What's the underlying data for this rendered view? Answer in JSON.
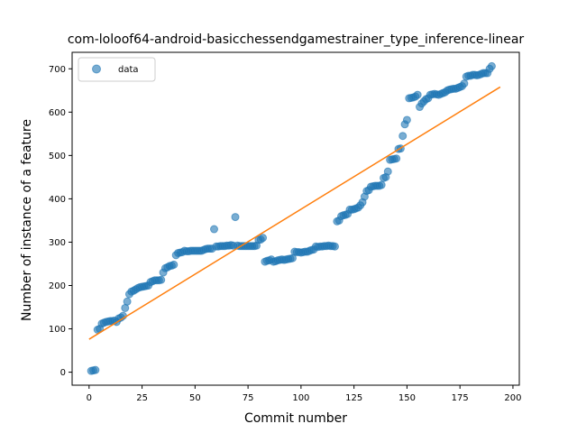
{
  "chart_data": {
    "type": "scatter",
    "title": "com-loloof64-android-basicchessendgamestrainer_type_inference-linear",
    "xlabel": "Commit number",
    "ylabel": "Number of instance of a feature",
    "xlim": [
      -8,
      203
    ],
    "ylim": [
      -30,
      738
    ],
    "xticks": [
      0,
      25,
      50,
      75,
      100,
      125,
      150,
      175,
      200
    ],
    "yticks": [
      0,
      100,
      200,
      300,
      400,
      500,
      600,
      700
    ],
    "legend": {
      "position": "top-left",
      "entries": [
        "data"
      ]
    },
    "colors": {
      "scatter": "#1f77b4",
      "fit": "#ff7f0e"
    },
    "series": [
      {
        "name": "data",
        "kind": "scatter",
        "points": [
          [
            1,
            3
          ],
          [
            2,
            4
          ],
          [
            3,
            5
          ],
          [
            4,
            98
          ],
          [
            5,
            100
          ],
          [
            6,
            112
          ],
          [
            7,
            114
          ],
          [
            8,
            116
          ],
          [
            9,
            117
          ],
          [
            10,
            118
          ],
          [
            11,
            118
          ],
          [
            12,
            119
          ],
          [
            13,
            116
          ],
          [
            14,
            124
          ],
          [
            15,
            126
          ],
          [
            16,
            130
          ],
          [
            17,
            148
          ],
          [
            18,
            163
          ],
          [
            19,
            180
          ],
          [
            20,
            186
          ],
          [
            21,
            188
          ],
          [
            22,
            191
          ],
          [
            23,
            194
          ],
          [
            24,
            196
          ],
          [
            25,
            197
          ],
          [
            26,
            198
          ],
          [
            27,
            199
          ],
          [
            28,
            200
          ],
          [
            29,
            208
          ],
          [
            30,
            210
          ],
          [
            31,
            212
          ],
          [
            32,
            212
          ],
          [
            33,
            212
          ],
          [
            34,
            213
          ],
          [
            35,
            230
          ],
          [
            36,
            240
          ],
          [
            37,
            242
          ],
          [
            38,
            245
          ],
          [
            39,
            246
          ],
          [
            40,
            248
          ],
          [
            41,
            270
          ],
          [
            42,
            275
          ],
          [
            43,
            276
          ],
          [
            44,
            277
          ],
          [
            45,
            280
          ],
          [
            46,
            279
          ],
          [
            47,
            279
          ],
          [
            48,
            280
          ],
          [
            49,
            280
          ],
          [
            50,
            280
          ],
          [
            51,
            280
          ],
          [
            52,
            280
          ],
          [
            53,
            280
          ],
          [
            54,
            282
          ],
          [
            55,
            284
          ],
          [
            56,
            285
          ],
          [
            57,
            285
          ],
          [
            58,
            285
          ],
          [
            59,
            330
          ],
          [
            60,
            290
          ],
          [
            61,
            290
          ],
          [
            62,
            291
          ],
          [
            63,
            291
          ],
          [
            64,
            291
          ],
          [
            65,
            292
          ],
          [
            66,
            292
          ],
          [
            67,
            293
          ],
          [
            68,
            292
          ],
          [
            69,
            358
          ],
          [
            70,
            292
          ],
          [
            71,
            291
          ],
          [
            72,
            291
          ],
          [
            73,
            291
          ],
          [
            74,
            291
          ],
          [
            75,
            291
          ],
          [
            76,
            291
          ],
          [
            77,
            291
          ],
          [
            78,
            291
          ],
          [
            79,
            292
          ],
          [
            80,
            305
          ],
          [
            81,
            306
          ],
          [
            82,
            310
          ],
          [
            83,
            255
          ],
          [
            84,
            257
          ],
          [
            85,
            258
          ],
          [
            86,
            260
          ],
          [
            87,
            255
          ],
          [
            88,
            256
          ],
          [
            89,
            258
          ],
          [
            90,
            259
          ],
          [
            91,
            260
          ],
          [
            92,
            259
          ],
          [
            93,
            260
          ],
          [
            94,
            261
          ],
          [
            95,
            262
          ],
          [
            96,
            263
          ],
          [
            97,
            278
          ],
          [
            98,
            277
          ],
          [
            99,
            277
          ],
          [
            100,
            276
          ],
          [
            101,
            277
          ],
          [
            102,
            278
          ],
          [
            103,
            278
          ],
          [
            104,
            280
          ],
          [
            105,
            282
          ],
          [
            106,
            283
          ],
          [
            107,
            290
          ],
          [
            108,
            289
          ],
          [
            109,
            290
          ],
          [
            110,
            290
          ],
          [
            111,
            291
          ],
          [
            112,
            291
          ],
          [
            113,
            292
          ],
          [
            114,
            291
          ],
          [
            115,
            291
          ],
          [
            116,
            290
          ],
          [
            117,
            348
          ],
          [
            118,
            350
          ],
          [
            119,
            360
          ],
          [
            120,
            362
          ],
          [
            121,
            363
          ],
          [
            122,
            365
          ],
          [
            123,
            375
          ],
          [
            124,
            375
          ],
          [
            125,
            376
          ],
          [
            126,
            378
          ],
          [
            127,
            380
          ],
          [
            128,
            385
          ],
          [
            129,
            392
          ],
          [
            130,
            405
          ],
          [
            131,
            418
          ],
          [
            132,
            420
          ],
          [
            133,
            428
          ],
          [
            134,
            429
          ],
          [
            135,
            430
          ],
          [
            136,
            430
          ],
          [
            137,
            430
          ],
          [
            138,
            432
          ],
          [
            139,
            448
          ],
          [
            140,
            450
          ],
          [
            141,
            463
          ],
          [
            142,
            490
          ],
          [
            143,
            491
          ],
          [
            144,
            492
          ],
          [
            145,
            493
          ],
          [
            146,
            515
          ],
          [
            147,
            516
          ],
          [
            148,
            545
          ],
          [
            149,
            572
          ],
          [
            150,
            582
          ],
          [
            151,
            632
          ],
          [
            152,
            633
          ],
          [
            153,
            634
          ],
          [
            154,
            636
          ],
          [
            155,
            640
          ],
          [
            156,
            612
          ],
          [
            157,
            620
          ],
          [
            158,
            625
          ],
          [
            159,
            630
          ],
          [
            160,
            632
          ],
          [
            161,
            640
          ],
          [
            162,
            641
          ],
          [
            163,
            642
          ],
          [
            164,
            641
          ],
          [
            165,
            640
          ],
          [
            166,
            642
          ],
          [
            167,
            644
          ],
          [
            168,
            646
          ],
          [
            169,
            650
          ],
          [
            170,
            652
          ],
          [
            171,
            653
          ],
          [
            172,
            654
          ],
          [
            173,
            654
          ],
          [
            174,
            656
          ],
          [
            175,
            658
          ],
          [
            176,
            660
          ],
          [
            177,
            666
          ],
          [
            178,
            682
          ],
          [
            179,
            684
          ],
          [
            180,
            684
          ],
          [
            181,
            686
          ],
          [
            182,
            686
          ],
          [
            183,
            685
          ],
          [
            184,
            686
          ],
          [
            185,
            688
          ],
          [
            186,
            690
          ],
          [
            187,
            690
          ],
          [
            188,
            690
          ],
          [
            189,
            700
          ],
          [
            190,
            706
          ]
        ]
      },
      {
        "name": "",
        "kind": "line",
        "points": [
          [
            0,
            76
          ],
          [
            194,
            658
          ]
        ]
      }
    ]
  }
}
